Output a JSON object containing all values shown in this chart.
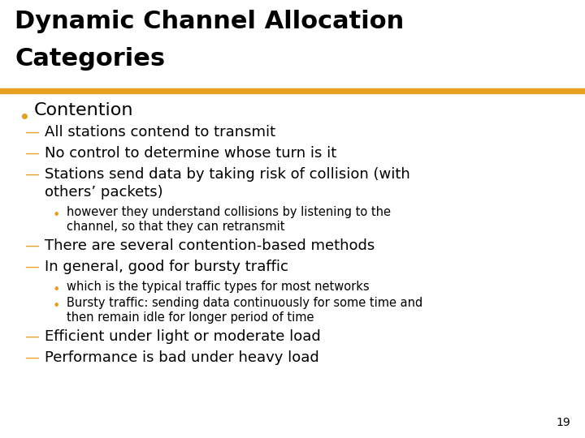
{
  "title_line1": "Dynamic Channel Allocation",
  "title_line2": "Categories",
  "title_color": "#000000",
  "title_fontsize": 22,
  "background_color": "#ffffff",
  "divider_color": "#E8A020",
  "bullet_color": "#E8A020",
  "text_color": "#000000",
  "page_number": "19",
  "fs_bullet1": 16,
  "fs_dash1": 13,
  "fs_bullet2": 10.5,
  "content": [
    {
      "type": "bullet1",
      "text": "Contention"
    },
    {
      "type": "dash1",
      "text": "All stations contend to transmit"
    },
    {
      "type": "dash1",
      "text": "No control to determine whose turn is it"
    },
    {
      "type": "dash1_wrap",
      "line1": "Stations send data by taking risk of collision (with",
      "line2": "others’ packets)"
    },
    {
      "type": "bullet2_wrap",
      "line1": "however they understand collisions by listening to the",
      "line2": "channel, so that they can retransmit"
    },
    {
      "type": "dash1",
      "text": "There are several contention-based methods"
    },
    {
      "type": "dash1",
      "text": "In general, good for bursty traffic"
    },
    {
      "type": "bullet2",
      "text": "which is the typical traffic types for most networks"
    },
    {
      "type": "bullet2_wrap",
      "line1": "Bursty traffic: sending data continuously for some time and",
      "line2": "then remain idle for longer period of time"
    },
    {
      "type": "dash1",
      "text": "Efficient under light or moderate load"
    },
    {
      "type": "dash1",
      "text": "Performance is bad under heavy load"
    }
  ]
}
